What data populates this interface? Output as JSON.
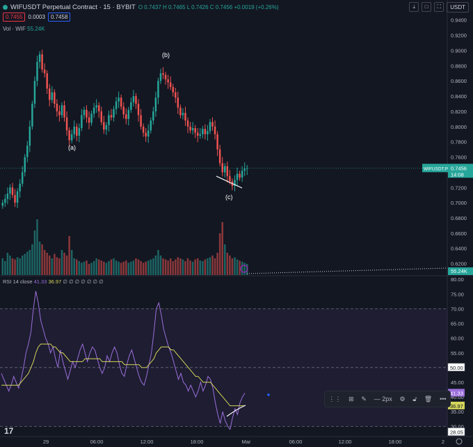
{
  "header": {
    "symbol_title": "WIFUSDT Perpetual Contract · 15 · BYBIT",
    "ohlc_text": "O 0.7437  H 0.7465  L 0.7426  C 0.7456  +0.0019 (+0.26%)",
    "sell_price": "0.7455",
    "spread": "0.0003",
    "buy_price": "0.7458",
    "currency": "USDT"
  },
  "volume_legend": {
    "label": "Vol · WIF",
    "value": "55.24K"
  },
  "rsi_legend": {
    "label": "RSI 14 close",
    "rsi_value": "41.33",
    "ma_value": "36.97",
    "extra": "∅ ∅ ∅ ∅ ∅ ∅ ∅"
  },
  "price_tag": {
    "symbol": "WIFUSDT.P",
    "price": "0.7456",
    "countdown": "14:08"
  },
  "volume_tag": "55.24K",
  "rsi_tags": {
    "rsi": "41.33",
    "ma": "36.97",
    "lvl50": "50.00",
    "lvl28": "28.05"
  },
  "toolbar": {
    "width_label": "2px",
    "more": "•••"
  },
  "logo": "17",
  "colors": {
    "up": "#26a69a",
    "down": "#ef5350",
    "rsi": "#9c6fdb",
    "rsi_ma": "#d4d65a",
    "bg": "#131722"
  },
  "chart_data": [
    {
      "type": "candlestick",
      "title": "WIFUSDT Perpetual Contract · 15 · BYBIT",
      "y_ticks": [
        "0.9400",
        "0.9200",
        "0.9000",
        "0.8800",
        "0.8600",
        "0.8400",
        "0.8200",
        "0.8000",
        "0.7800",
        "0.7600",
        "0.7400",
        "0.7200",
        "0.7000",
        "0.6800",
        "0.6600",
        "0.6400",
        "0.6200"
      ],
      "ylim": [
        0.605,
        0.948
      ],
      "x_ticks": [
        "29",
        "06:00",
        "12:00",
        "18:00",
        "Mar",
        "06:00",
        "12:00",
        "18:00",
        "2"
      ],
      "annotations": [
        "(a)",
        "(b)",
        "(c)"
      ],
      "close_path": [
        0.7,
        0.705,
        0.712,
        0.72,
        0.71,
        0.7,
        0.715,
        0.725,
        0.74,
        0.76,
        0.775,
        0.8,
        0.83,
        0.86,
        0.885,
        0.895,
        0.875,
        0.87,
        0.85,
        0.835,
        0.845,
        0.83,
        0.82,
        0.815,
        0.828,
        0.812,
        0.795,
        0.782,
        0.79,
        0.8,
        0.788,
        0.798,
        0.815,
        0.822,
        0.812,
        0.805,
        0.817,
        0.825,
        0.828,
        0.82,
        0.806,
        0.796,
        0.802,
        0.815,
        0.812,
        0.823,
        0.833,
        0.838,
        0.826,
        0.816,
        0.81,
        0.822,
        0.832,
        0.84,
        0.83,
        0.815,
        0.8,
        0.792,
        0.787,
        0.795,
        0.808,
        0.82,
        0.838,
        0.86,
        0.87,
        0.868,
        0.862,
        0.858,
        0.852,
        0.845,
        0.838,
        0.825,
        0.815,
        0.818,
        0.808,
        0.8,
        0.795,
        0.798,
        0.792,
        0.788,
        0.79,
        0.797,
        0.79,
        0.794,
        0.806,
        0.8,
        0.79,
        0.77,
        0.752,
        0.74,
        0.748,
        0.735,
        0.728,
        0.722,
        0.73,
        0.738,
        0.733,
        0.742,
        0.745,
        0.7456
      ],
      "volume_legend": "55.24K",
      "volume_path": [
        0.3,
        0.25,
        0.4,
        0.35,
        0.3,
        0.28,
        0.32,
        0.3,
        0.35,
        0.38,
        0.42,
        0.45,
        0.55,
        0.8,
        1.0,
        0.6,
        0.55,
        0.45,
        0.4,
        0.35,
        0.3,
        0.38,
        0.32,
        0.3,
        0.45,
        0.4,
        0.35,
        0.7,
        0.45,
        0.3,
        0.28,
        0.25,
        0.22,
        0.24,
        0.26,
        0.2,
        0.22,
        0.25,
        0.3,
        0.28,
        0.26,
        0.24,
        0.22,
        0.25,
        0.28,
        0.3,
        0.26,
        0.24,
        0.22,
        0.24,
        0.26,
        0.22,
        0.24,
        0.26,
        0.3,
        0.28,
        0.25,
        0.22,
        0.24,
        0.26,
        0.28,
        0.3,
        0.35,
        0.45,
        0.35,
        0.3,
        0.28,
        0.26,
        0.3,
        0.25,
        0.28,
        0.32,
        0.3,
        0.28,
        0.25,
        0.3,
        0.26,
        0.24,
        0.28,
        0.3,
        0.26,
        0.25,
        0.28,
        0.3,
        0.32,
        0.35,
        0.3,
        0.4,
        0.75,
        0.95,
        0.55,
        0.4,
        0.35,
        0.3,
        0.32,
        0.28,
        0.26,
        0.24,
        0.22,
        0.2
      ]
    },
    {
      "type": "line",
      "title": "RSI 14 close",
      "y_ticks": [
        "80.00",
        "75.00",
        "70.00",
        "65.00",
        "60.00",
        "55.00",
        "50.00",
        "45.00",
        "40.00",
        "35.00",
        "30.00",
        "28.05"
      ],
      "ylim": [
        27,
        81
      ],
      "bands": [
        30,
        50,
        70
      ],
      "series": [
        {
          "values": [
            48,
            46,
            44,
            42,
            44,
            47,
            45,
            43,
            46,
            50,
            55,
            58,
            62,
            70,
            76,
            72,
            66,
            63,
            60,
            58,
            55,
            57,
            53,
            50,
            56,
            52,
            49,
            46,
            49,
            52,
            50,
            53,
            56,
            58,
            55,
            52,
            55,
            57,
            56,
            53,
            50,
            48,
            50,
            54,
            52,
            55,
            57,
            55,
            51,
            48,
            47,
            51,
            54,
            56,
            53,
            50,
            47,
            45,
            44,
            47,
            51,
            55,
            62,
            70,
            72,
            68,
            63,
            60,
            57,
            55,
            52,
            49,
            46,
            48,
            45,
            44,
            42,
            44,
            42,
            40,
            42,
            45,
            42,
            44,
            47,
            46,
            43,
            38,
            34,
            31,
            35,
            32,
            30,
            29,
            33,
            36,
            34,
            38,
            40,
            41.33
          ]
        },
        {
          "values": [
            44,
            44,
            44,
            44,
            44,
            44,
            44,
            44,
            45,
            46,
            47,
            48,
            50,
            52,
            55,
            57,
            58,
            58,
            58,
            58,
            58,
            57,
            57,
            56,
            55,
            55,
            54,
            53,
            52,
            52,
            52,
            52,
            52,
            52,
            53,
            53,
            53,
            53,
            53,
            53,
            53,
            52,
            52,
            52,
            52,
            52,
            52,
            52,
            52,
            52,
            51,
            51,
            51,
            51,
            51,
            51,
            51,
            50,
            50,
            50,
            51,
            52,
            53,
            55,
            56,
            57,
            57,
            57,
            57,
            56,
            56,
            55,
            54,
            53,
            52,
            51,
            50,
            49,
            48,
            47,
            47,
            46,
            45,
            45,
            45,
            45,
            44,
            43,
            42,
            41,
            40,
            39,
            38,
            37,
            37,
            37,
            37,
            37,
            37,
            36.97
          ]
        }
      ],
      "annotations": []
    }
  ]
}
